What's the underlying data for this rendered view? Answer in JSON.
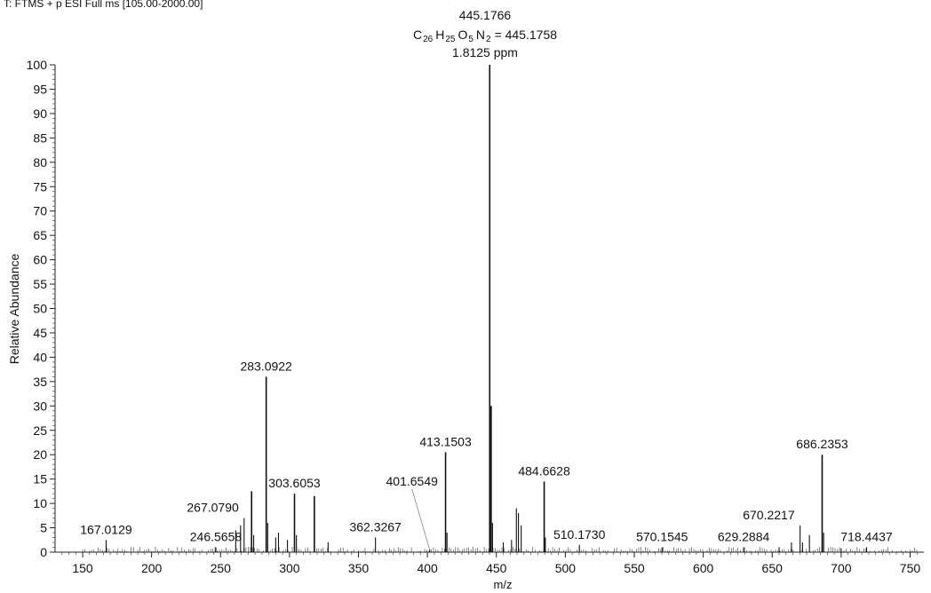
{
  "header": {
    "scan_filter": "T: FTMS + p ESI Full ms [105.00-2000.00]"
  },
  "chart_data": {
    "type": "bar",
    "ylabel": "Relative Abundance",
    "xlabel": "m/z",
    "xlim": [
      130,
      760
    ],
    "ylim": [
      0,
      100
    ],
    "x_ticks": [
      150,
      200,
      250,
      300,
      350,
      400,
      450,
      500,
      550,
      600,
      650,
      700,
      750
    ],
    "y_ticks": [
      0,
      5,
      10,
      15,
      20,
      25,
      30,
      35,
      40,
      45,
      50,
      55,
      60,
      65,
      70,
      75,
      80,
      85,
      90,
      95,
      100
    ],
    "base_peak_annotation": {
      "mz_label": "445.1766",
      "formula_prefix": "C",
      "c_count": "26",
      "h_count": "25",
      "o_count": "5",
      "n_count": "2",
      "theoretical": "= 445.1758",
      "ppm": "1.8125 ppm"
    },
    "peaks": [
      {
        "x": 167.0129,
        "y": 2.5,
        "label": "167.0129"
      },
      {
        "x": 246.5658,
        "y": 1.0,
        "label": "246.5658"
      },
      {
        "x": 261.0,
        "y": 4.5
      },
      {
        "x": 264.5,
        "y": 5.5
      },
      {
        "x": 267.079,
        "y": 7.0,
        "label": "267.0790"
      },
      {
        "x": 272.5,
        "y": 12.5
      },
      {
        "x": 274.0,
        "y": 3.5
      },
      {
        "x": 283.0922,
        "y": 36.0,
        "label": "283.0922"
      },
      {
        "x": 284.2,
        "y": 6.0
      },
      {
        "x": 290.0,
        "y": 3.0
      },
      {
        "x": 292.0,
        "y": 4.0
      },
      {
        "x": 298.5,
        "y": 2.5
      },
      {
        "x": 303.6053,
        "y": 12.0,
        "label": "303.6053"
      },
      {
        "x": 305.0,
        "y": 3.5
      },
      {
        "x": 318.0,
        "y": 11.5
      },
      {
        "x": 328.0,
        "y": 2.0
      },
      {
        "x": 362.3267,
        "y": 3.0,
        "label": "362.3267"
      },
      {
        "x": 401.6549,
        "y": 0.5,
        "label": "401.6549"
      },
      {
        "x": 413.1503,
        "y": 20.5,
        "label": "413.1503"
      },
      {
        "x": 414.2,
        "y": 4.0
      },
      {
        "x": 445.1766,
        "y": 100,
        "label": "445.1766"
      },
      {
        "x": 446.2,
        "y": 30.0
      },
      {
        "x": 447.2,
        "y": 6.0
      },
      {
        "x": 455.0,
        "y": 2.0
      },
      {
        "x": 461.0,
        "y": 2.5
      },
      {
        "x": 464.5,
        "y": 9.0
      },
      {
        "x": 466.0,
        "y": 8.0
      },
      {
        "x": 468.0,
        "y": 5.5
      },
      {
        "x": 484.6628,
        "y": 14.5,
        "label": "484.6628"
      },
      {
        "x": 485.5,
        "y": 3.0
      },
      {
        "x": 510.173,
        "y": 1.5,
        "label": "510.1730"
      },
      {
        "x": 570.1545,
        "y": 1.0,
        "label": "570.1545"
      },
      {
        "x": 629.2884,
        "y": 1.0,
        "label": "629.2884"
      },
      {
        "x": 655.0,
        "y": 1.0
      },
      {
        "x": 664.0,
        "y": 2.0
      },
      {
        "x": 670.2217,
        "y": 5.5,
        "label": "670.2217"
      },
      {
        "x": 672.0,
        "y": 2.0
      },
      {
        "x": 677.0,
        "y": 3.5
      },
      {
        "x": 686.2353,
        "y": 20.0,
        "label": "686.2353"
      },
      {
        "x": 687.3,
        "y": 4.0
      },
      {
        "x": 700.0,
        "y": 0.8
      },
      {
        "x": 718.4437,
        "y": 1.0,
        "label": "718.4437"
      }
    ],
    "label_positions": {
      "167.0129": "above",
      "246.5658": "above",
      "267.0790": "above-left",
      "283.0922": "above",
      "303.6053": "above",
      "362.3267": "above",
      "401.6549": "leader-left",
      "413.1503": "above",
      "484.6628": "above",
      "510.1730": "above",
      "570.1545": "above",
      "629.2884": "above",
      "670.2217": "above-left",
      "686.2353": "above",
      "718.4437": "above"
    }
  }
}
